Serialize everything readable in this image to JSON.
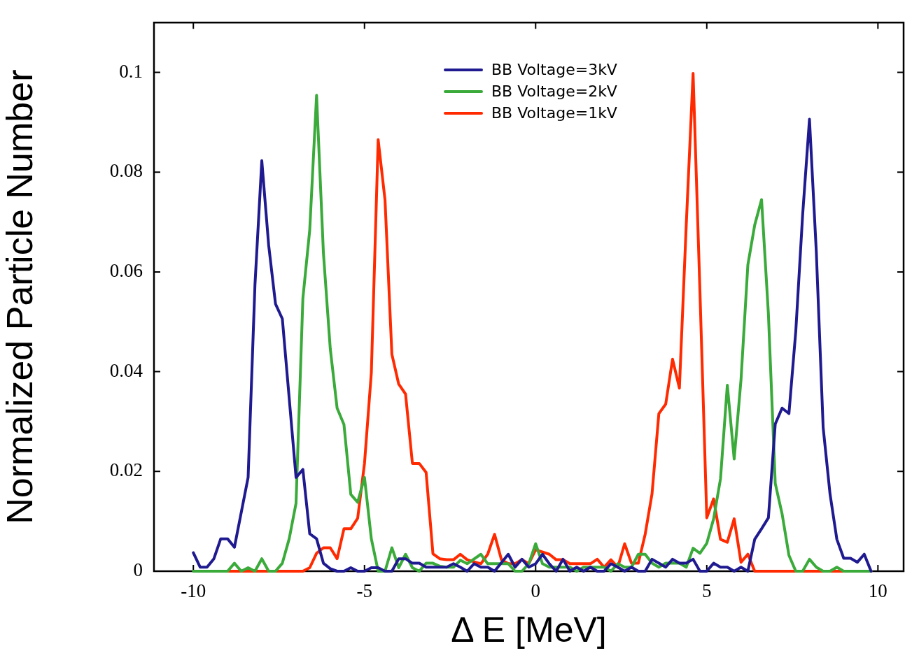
{
  "chart_data": {
    "type": "line",
    "xlabel": "Δ E [MeV]",
    "ylabel": "Normalized Particle Number",
    "xlim": [
      -11.15,
      10.75
    ],
    "xticks": [
      -10,
      -5,
      0,
      5,
      10
    ],
    "ylim": [
      0,
      0.11
    ],
    "yticks": [
      0,
      0.02,
      0.04,
      0.06,
      0.08,
      0.1
    ],
    "grid": false,
    "legend": "top",
    "marker": "none",
    "line_style": "solid",
    "series": [
      {
        "name": "BB Voltage=3kV",
        "color": "#1f1a8f",
        "x": [
          -10,
          -9.8,
          -9.6,
          -9.4,
          -9.2,
          -9,
          -8.8,
          -8.4,
          -8.2,
          -8,
          -7.8,
          -7.6,
          -7.4,
          -7,
          -6.8,
          -6.6,
          -6.4,
          -6.2,
          -6,
          -5.8,
          -5.6,
          -5.4,
          -5.2,
          -5,
          -4.8,
          -4.6,
          -4.4,
          -4.2,
          -4,
          -3.8,
          -3.6,
          -3.4,
          -3.2,
          -2.6,
          -2.4,
          -2.2,
          -2,
          -1.8,
          -1.6,
          -1.4,
          -1.2,
          -0.8,
          -0.6,
          -0.4,
          -0.2,
          0,
          0.2,
          0.4,
          0.6,
          0.8,
          1,
          1.2,
          1.4,
          1.6,
          1.8,
          2,
          2.2,
          2.4,
          2.6,
          2.8,
          3,
          3.2,
          3.4,
          3.6,
          3.8,
          4,
          4.2,
          4.4,
          4.6,
          4.8,
          5,
          5.2,
          5.4,
          5.6,
          5.8,
          6,
          6.2,
          6.4,
          6.6,
          6.8,
          7,
          7.2,
          7.4,
          7.6,
          7.8,
          8,
          8.2,
          8.4,
          8.6,
          8.8,
          9,
          9.2,
          9.4,
          9.6,
          9.8
        ],
        "values": [
          0.0037,
          0.0008,
          0.0008,
          0.0025,
          0.0065,
          0.0065,
          0.0048,
          0.0188,
          0.0574,
          0.0823,
          0.0654,
          0.0536,
          0.0506,
          0.0188,
          0.0204,
          0.0075,
          0.0065,
          0.0016,
          0.0005,
          0,
          0,
          0.0007,
          0,
          0,
          0.0007,
          0.0007,
          0,
          0,
          0.0025,
          0.0025,
          0.0016,
          0.0016,
          0.0008,
          0.0008,
          0.0015,
          0.0008,
          0,
          0.0015,
          0.0008,
          0.0008,
          0,
          0.0034,
          0.0008,
          0.0024,
          0.0008,
          0.0015,
          0.0034,
          0.0015,
          0,
          0.0024,
          0,
          0.0008,
          0,
          0.0008,
          0,
          0,
          0.0015,
          0.0008,
          0,
          0.0008,
          0,
          0,
          0.0024,
          0.0016,
          0.0008,
          0.0024,
          0.0016,
          0.0016,
          0.0024,
          0,
          0,
          0.0016,
          0.0008,
          0.0008,
          0,
          0.0008,
          0,
          0.0064,
          0.0085,
          0.0107,
          0.0295,
          0.0327,
          0.0316,
          0.0481,
          0.0714,
          0.0906,
          0.064,
          0.0288,
          0.0155,
          0.0064,
          0.0026,
          0.0026,
          0.0018,
          0.0034,
          0
        ]
      },
      {
        "name": "BB Voltage=2kV",
        "color": "#3aaa3a",
        "x": [
          -10,
          -9,
          -8.8,
          -8.6,
          -8.4,
          -8.2,
          -8,
          -7.8,
          -7.6,
          -7.4,
          -7.2,
          -7,
          -6.8,
          -6.6,
          -6.4,
          -6.2,
          -6,
          -5.8,
          -5.6,
          -5.4,
          -5.2,
          -5,
          -4.8,
          -4.6,
          -4.4,
          -4.2,
          -4,
          -3.8,
          -3.6,
          -3.4,
          -3.2,
          -3,
          -2.8,
          -2.6,
          -2.4,
          -2.2,
          -2,
          -1.6,
          -1.4,
          -1.2,
          -1,
          -0.8,
          -0.6,
          -0.4,
          -0.2,
          0,
          0.2,
          0.4,
          0.8,
          1,
          1.2,
          1.4,
          2,
          2.2,
          2.4,
          2.6,
          2.8,
          3,
          3.2,
          3.4,
          3.6,
          3.8,
          4,
          4.2,
          4.4,
          4.6,
          4.8,
          5,
          5.2,
          5.4,
          5.6,
          5.8,
          6,
          6.2,
          6.4,
          6.6,
          6.8,
          7,
          7.2,
          7.4,
          7.6,
          7.8,
          8,
          8.2,
          8.4,
          8.6,
          8.8,
          9,
          9.8
        ],
        "values": [
          0,
          0,
          0.0016,
          0,
          0.0007,
          0,
          0.0025,
          0,
          0,
          0.0016,
          0.0065,
          0.0136,
          0.0547,
          0.0684,
          0.0954,
          0.0638,
          0.0446,
          0.0327,
          0.0294,
          0.0154,
          0.0138,
          0.0188,
          0.0065,
          0,
          0,
          0.0047,
          0.0007,
          0.0034,
          0.0007,
          0,
          0.0016,
          0.0016,
          0.001,
          0.0008,
          0.0008,
          0.0022,
          0.0015,
          0.0034,
          0.0015,
          0.0015,
          0.0015,
          0.0015,
          0,
          0,
          0.0015,
          0.0055,
          0.0015,
          0.0008,
          0.0008,
          0.0008,
          0,
          0.0008,
          0.0008,
          0,
          0.0015,
          0.0008,
          0.0008,
          0.0034,
          0.0034,
          0.0016,
          0.0008,
          0.0016,
          0.0016,
          0.0016,
          0.0008,
          0.0046,
          0.0036,
          0.0056,
          0.0105,
          0.0185,
          0.0373,
          0.0225,
          0.0384,
          0.0614,
          0.0694,
          0.0745,
          0.0516,
          0.0176,
          0.0115,
          0.0032,
          0,
          0,
          0.0024,
          0.0008,
          0,
          0,
          0.0008,
          0,
          0
        ]
      },
      {
        "name": "BB Voltage=1kV",
        "color": "#ff2a00",
        "x": [
          -9,
          -6.8,
          -6.6,
          -6.4,
          -6.2,
          -6,
          -5.8,
          -5.6,
          -5.4,
          -5.2,
          -5,
          -4.8,
          -4.6,
          -4.4,
          -4.2,
          -4,
          -3.8,
          -3.6,
          -3.4,
          -3.2,
          -3,
          -2.8,
          -2.6,
          -2.4,
          -2.2,
          -2,
          -1.6,
          -1.4,
          -1.2,
          -1,
          -0.8,
          -0.6,
          -0.4,
          -0.2,
          0,
          0.4,
          0.6,
          0.8,
          1,
          1.6,
          1.8,
          2,
          2.2,
          2.4,
          2.6,
          2.8,
          3,
          3.2,
          3.4,
          3.6,
          3.8,
          4,
          4.2,
          4.4,
          4.6,
          4.8,
          5,
          5.2,
          5.4,
          5.6,
          5.8,
          6,
          6.2,
          6.4,
          9.8
        ],
        "values": [
          0,
          0,
          0.0007,
          0.0036,
          0.0047,
          0.0047,
          0.0025,
          0.0085,
          0.0085,
          0.0106,
          0.0216,
          0.0398,
          0.0865,
          0.0744,
          0.0435,
          0.0375,
          0.0355,
          0.0216,
          0.0216,
          0.0198,
          0.0035,
          0.0025,
          0.0023,
          0.0023,
          0.0034,
          0.0023,
          0.0015,
          0.0034,
          0.0074,
          0.0023,
          0.0015,
          0.0015,
          0.0023,
          0.0015,
          0.0043,
          0.0034,
          0.0023,
          0.0023,
          0.0015,
          0.0015,
          0.0024,
          0.0008,
          0.0023,
          0.0008,
          0.0055,
          0.0016,
          0.0016,
          0.0074,
          0.0155,
          0.0316,
          0.0335,
          0.0425,
          0.0367,
          0.0694,
          0.0998,
          0.0561,
          0.0107,
          0.0145,
          0.0064,
          0.0058,
          0.0105,
          0.0018,
          0.0034,
          0,
          0
        ]
      }
    ]
  }
}
